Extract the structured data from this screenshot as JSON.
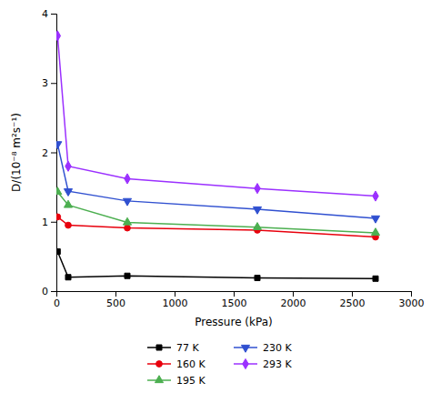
{
  "chart_data": {
    "type": "line",
    "xlabel": "Pressure (kPa)",
    "ylabel": "D/(10⁻⁸ m²s⁻¹)",
    "x": [
      10,
      100,
      600,
      1700,
      2700
    ],
    "series": [
      {
        "name": "77 K",
        "color": "#000000",
        "marker": "square",
        "values": [
          0.57,
          0.2,
          0.22,
          0.19,
          0.18
        ]
      },
      {
        "name": "160 K",
        "color": "#e8000d",
        "marker": "circle",
        "values": [
          1.07,
          0.95,
          0.91,
          0.88,
          0.78
        ]
      },
      {
        "name": "195 K",
        "color": "#4caf50",
        "marker": "triangle-up",
        "values": [
          1.43,
          1.24,
          0.99,
          0.92,
          0.84
        ]
      },
      {
        "name": "230 K",
        "color": "#3050d0",
        "marker": "triangle-down",
        "values": [
          2.12,
          1.44,
          1.3,
          1.18,
          1.05
        ]
      },
      {
        "name": "293 K",
        "color": "#9b30ff",
        "marker": "diamond",
        "values": [
          3.68,
          1.8,
          1.62,
          1.48,
          1.37
        ]
      }
    ],
    "xlim": [
      0,
      3000
    ],
    "ylim": [
      0,
      4
    ],
    "xticks": [
      0,
      500,
      1000,
      1500,
      2000,
      2500,
      3000
    ],
    "yticks": [
      0,
      1,
      2,
      3,
      4
    ],
    "grid": false,
    "legend": "bottom"
  }
}
